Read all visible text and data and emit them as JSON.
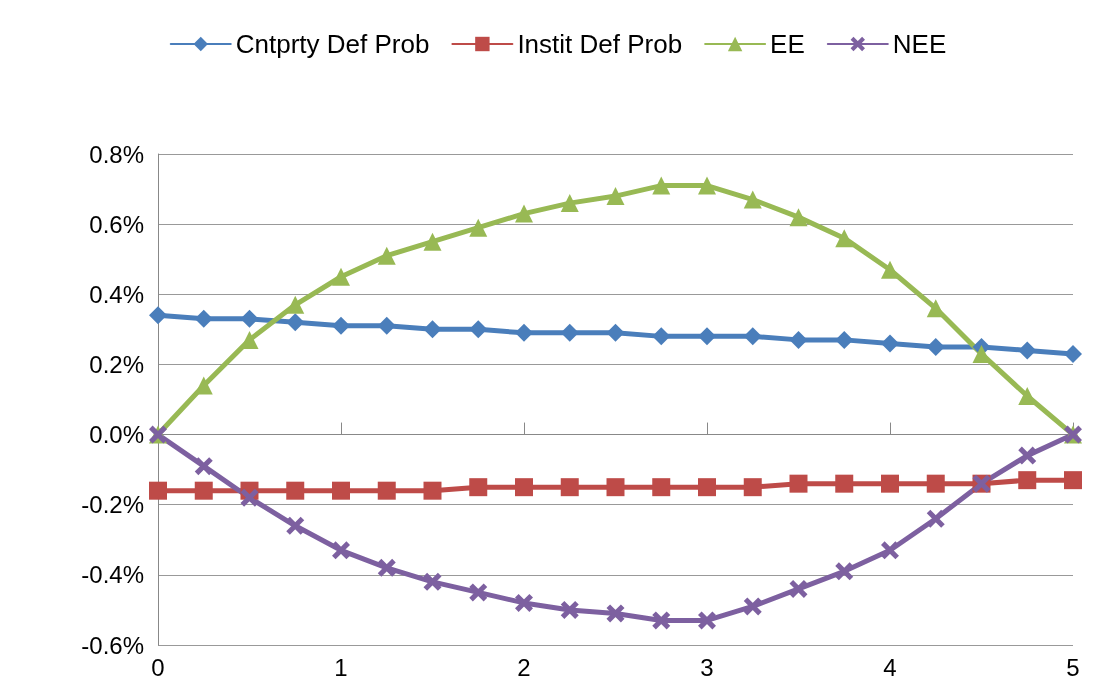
{
  "chart_data": {
    "type": "line",
    "x": [
      0,
      0.25,
      0.5,
      0.75,
      1,
      1.25,
      1.5,
      1.75,
      2,
      2.25,
      2.5,
      2.75,
      3,
      3.25,
      3.5,
      3.75,
      4,
      4.25,
      4.5,
      4.75,
      5
    ],
    "series": [
      {
        "name": "Cntprty Def Prob",
        "color": "#4a7ebb",
        "marker": "diamond",
        "values": [
          0.34,
          0.33,
          0.33,
          0.32,
          0.31,
          0.31,
          0.3,
          0.3,
          0.29,
          0.29,
          0.29,
          0.28,
          0.28,
          0.28,
          0.27,
          0.27,
          0.26,
          0.25,
          0.25,
          0.24,
          0.23
        ]
      },
      {
        "name": "Instit Def Prob",
        "color": "#be4b48",
        "marker": "square",
        "values": [
          -0.16,
          -0.16,
          -0.16,
          -0.16,
          -0.16,
          -0.16,
          -0.16,
          -0.15,
          -0.15,
          -0.15,
          -0.15,
          -0.15,
          -0.15,
          -0.15,
          -0.14,
          -0.14,
          -0.14,
          -0.14,
          -0.14,
          -0.13,
          -0.13
        ]
      },
      {
        "name": "EE",
        "color": "#98b954",
        "marker": "triangle",
        "values": [
          0,
          0.14,
          0.27,
          0.37,
          0.45,
          0.51,
          0.55,
          0.59,
          0.63,
          0.66,
          0.68,
          0.71,
          0.71,
          0.67,
          0.62,
          0.56,
          0.47,
          0.36,
          0.23,
          0.11,
          0
        ]
      },
      {
        "name": "NEE",
        "color": "#7d60a0",
        "marker": "cross",
        "values": [
          0,
          -0.09,
          -0.18,
          -0.26,
          -0.33,
          -0.38,
          -0.42,
          -0.45,
          -0.48,
          -0.5,
          -0.51,
          -0.53,
          -0.53,
          -0.49,
          -0.44,
          -0.39,
          -0.33,
          -0.24,
          -0.14,
          -0.06,
          0
        ]
      }
    ],
    "xlim": [
      0,
      5
    ],
    "xticks": [
      0,
      1,
      2,
      3,
      4,
      5
    ],
    "ylim": [
      -0.6,
      0.8
    ],
    "yticks": [
      {
        "value": -0.6,
        "label": "-0.6%"
      },
      {
        "value": -0.4,
        "label": "-0.4%"
      },
      {
        "value": -0.2,
        "label": "-0.2%"
      },
      {
        "value": 0,
        "label": "0.0%"
      },
      {
        "value": 0.2,
        "label": "0.2%"
      },
      {
        "value": 0.4,
        "label": "0.4%"
      },
      {
        "value": 0.6,
        "label": "0.6%"
      },
      {
        "value": 0.8,
        "label": "0.8%"
      }
    ],
    "grid": "y",
    "legend": "top",
    "line_style": "solid"
  }
}
